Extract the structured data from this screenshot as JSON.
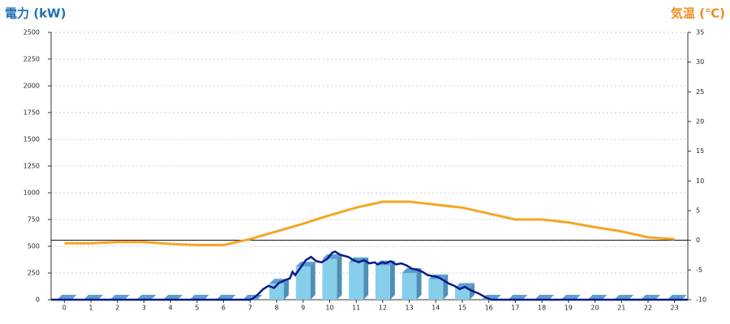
{
  "chart_data": {
    "type": "combo",
    "y_title": "電力 (kW)",
    "y2_title": "気温 (℃)",
    "categories": [
      "0",
      "1",
      "2",
      "3",
      "4",
      "5",
      "6",
      "7",
      "8",
      "9",
      "10",
      "11",
      "12",
      "13",
      "14",
      "15",
      "16",
      "17",
      "18",
      "19",
      "20",
      "21",
      "22",
      "23"
    ],
    "ylim": [
      0,
      2500
    ],
    "yticks": [
      0,
      250,
      500,
      750,
      1000,
      1250,
      1500,
      1750,
      2000,
      2250,
      2500
    ],
    "y2lim": [
      -10,
      35
    ],
    "y2ticks": [
      -10,
      -5,
      0,
      5,
      10,
      15,
      20,
      25,
      30,
      35
    ],
    "y2_reference_line": 0,
    "grid": true,
    "bars": {
      "color": "#87ceeb",
      "values": [
        0,
        0,
        0,
        0,
        0,
        0,
        0,
        0,
        150,
        310,
        380,
        350,
        320,
        250,
        190,
        110,
        0,
        0,
        0,
        0,
        0,
        0,
        0,
        0
      ]
    },
    "power_line": {
      "color": "#0a1a8c",
      "x": [
        -0.5,
        7,
        7.1,
        7.3,
        7.5,
        7.7,
        7.9,
        8.1,
        8.3,
        8.5,
        8.6,
        8.7,
        8.9,
        9.1,
        9.3,
        9.5,
        9.7,
        9.9,
        10.1,
        10.2,
        10.4,
        10.7,
        10.9,
        11.1,
        11.3,
        11.5,
        11.7,
        11.8,
        12,
        12.1,
        12.3,
        12.5,
        12.7,
        12.9,
        13.1,
        13.3,
        13.5,
        13.7,
        13.9,
        14.1,
        14.3,
        14.5,
        14.7,
        14.9,
        15.1,
        15.3,
        15.6,
        15.9,
        16.1,
        23.5
      ],
      "values": [
        0,
        0,
        10,
        50,
        100,
        130,
        110,
        160,
        180,
        200,
        260,
        230,
        300,
        370,
        400,
        360,
        350,
        380,
        440,
        450,
        420,
        400,
        370,
        350,
        370,
        340,
        350,
        330,
        350,
        340,
        360,
        330,
        340,
        320,
        290,
        280,
        260,
        230,
        220,
        210,
        180,
        150,
        130,
        100,
        120,
        90,
        60,
        20,
        0,
        0
      ]
    },
    "temperature": {
      "color": "#f5a623",
      "axis": "y2",
      "values": [
        -0.5,
        -0.5,
        -0.3,
        -0.3,
        -0.6,
        -0.8,
        -0.8,
        0.2,
        1.5,
        2.8,
        4.2,
        5.5,
        6.5,
        6.5,
        6,
        5.5,
        4.5,
        3.5,
        3.5,
        3,
        2.2,
        1.5,
        0.5,
        0.2
      ]
    }
  }
}
